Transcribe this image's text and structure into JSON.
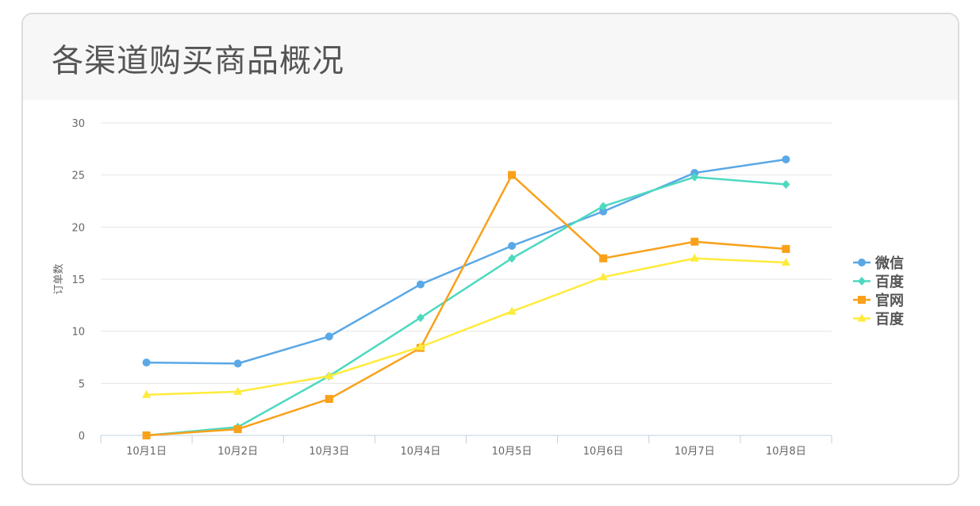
{
  "title": "各渠道购买商品概况",
  "chart_data": {
    "type": "line",
    "categories": [
      "10月1日",
      "10月2日",
      "10月3日",
      "10月4日",
      "10月5日",
      "10月6日",
      "10月7日",
      "10月8日"
    ],
    "ylabel": "订单数",
    "xlabel": "",
    "ylim": [
      0,
      30
    ],
    "yticks": [
      0,
      5,
      10,
      15,
      20,
      25,
      30
    ],
    "grid": true,
    "legend_position": "right",
    "series": [
      {
        "name": "微信",
        "color": "#5aa8e6",
        "marker": "circle",
        "values": [
          7.0,
          6.9,
          9.5,
          14.5,
          18.2,
          21.5,
          25.2,
          26.5
        ]
      },
      {
        "name": "百度",
        "color": "#4dd9c0",
        "marker": "diamond",
        "values": [
          0.0,
          0.8,
          5.7,
          11.3,
          17.0,
          22.0,
          24.8,
          24.1
        ]
      },
      {
        "name": "官网",
        "color": "#f9a11b",
        "marker": "square",
        "values": [
          0.0,
          0.6,
          3.5,
          8.4,
          25.0,
          17.0,
          18.6,
          17.9
        ]
      },
      {
        "name": "百度",
        "color": "#ffeb3b",
        "marker": "triangle",
        "values": [
          3.9,
          4.2,
          5.7,
          8.5,
          11.9,
          15.2,
          17.0,
          16.6
        ]
      }
    ]
  }
}
